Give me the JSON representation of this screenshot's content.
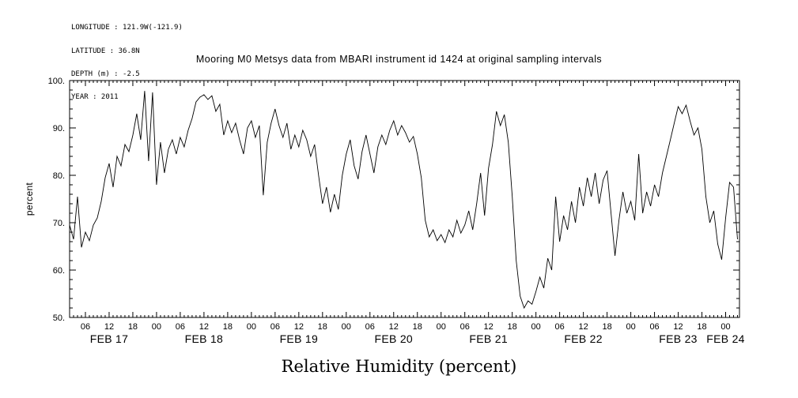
{
  "metadata_block": {
    "lines": [
      "LONGITUDE : 121.9W(-121.9)",
      "LATITUDE : 36.8N",
      "DEPTH (m) : -2.5",
      "YEAR : 2011"
    ]
  },
  "title": "Mooring M0 Metsys data from MBARI instrument id 1424 at original sampling intervals",
  "chart_data": {
    "type": "line",
    "title": "Mooring M0 Metsys data from MBARI instrument id 1424 at original sampling intervals",
    "ylabel": "percent",
    "xlabel": "Relative Humidity (percent)",
    "ylim": [
      50,
      100
    ],
    "y_ticks": [
      50,
      60,
      70,
      80,
      90,
      100
    ],
    "y_tick_labels": [
      "50.",
      "60.",
      "70.",
      "80.",
      "90.",
      "100."
    ],
    "x_unit": "hours since 2011-02-17 00:00",
    "x_domain": [
      2,
      171.5
    ],
    "x_major_tick_hours": 6,
    "x_hour_labels": [
      "00",
      "06",
      "12",
      "18"
    ],
    "day_labels": [
      {
        "label": "FEB 17",
        "hour": 12
      },
      {
        "label": "FEB 18",
        "hour": 36
      },
      {
        "label": "FEB 19",
        "hour": 60
      },
      {
        "label": "FEB 20",
        "hour": 84
      },
      {
        "label": "FEB 21",
        "hour": 108
      },
      {
        "label": "FEB 22",
        "hour": 132
      },
      {
        "label": "FEB 23",
        "hour": 156
      },
      {
        "label": "FEB 24",
        "hour": 168
      }
    ],
    "grid": false,
    "line_color": "#000000",
    "series": [
      {
        "name": "relative humidity",
        "t_start": 2,
        "t_step": 1,
        "values": [
          69.5,
          66.5,
          75.5,
          64.8,
          68.0,
          66.2,
          69.5,
          71.0,
          74.5,
          79.5,
          82.5,
          77.5,
          84.0,
          82.0,
          86.5,
          85.0,
          88.5,
          93.0,
          87.5,
          97.8,
          83.0,
          97.5,
          78.0,
          87.0,
          80.5,
          85.5,
          87.5,
          84.5,
          88.0,
          86.0,
          89.5,
          92.0,
          95.5,
          96.5,
          97.0,
          96.0,
          96.8,
          93.5,
          95.0,
          88.5,
          91.5,
          89.0,
          91.0,
          87.5,
          84.5,
          90.0,
          91.5,
          88.0,
          90.5,
          75.8,
          87.0,
          91.0,
          94.0,
          90.5,
          88.0,
          91.0,
          85.5,
          88.5,
          86.0,
          89.5,
          87.5,
          84.0,
          86.5,
          80.0,
          74.0,
          77.5,
          72.2,
          76.0,
          72.8,
          80.0,
          84.5,
          87.5,
          82.0,
          79.2,
          85.0,
          88.5,
          84.5,
          80.5,
          86.0,
          88.5,
          86.5,
          89.5,
          91.5,
          88.5,
          90.5,
          89.0,
          87.0,
          88.2,
          84.5,
          79.5,
          70.5,
          67.0,
          68.5,
          66.2,
          67.5,
          65.8,
          68.5,
          67.0,
          70.5,
          67.8,
          69.5,
          72.5,
          68.5,
          74.0,
          80.5,
          71.5,
          81.5,
          86.5,
          93.5,
          90.5,
          92.8,
          87.0,
          75.5,
          62.0,
          54.5,
          52.0,
          53.5,
          52.8,
          55.5,
          58.5,
          56.2,
          62.5,
          60.0,
          75.5,
          66.0,
          71.5,
          68.5,
          74.5,
          70.0,
          77.5,
          73.5,
          79.5,
          75.5,
          80.5,
          74.0,
          79.0,
          81.0,
          72.0,
          63.0,
          70.5,
          76.5,
          72.0,
          74.5,
          70.5,
          84.5,
          72.0,
          76.5,
          73.5,
          78.0,
          75.5,
          80.5,
          84.0,
          87.5,
          91.0,
          94.5,
          93.0,
          94.8,
          91.5,
          88.5,
          90.0,
          85.5,
          75.5,
          70.0,
          72.5,
          65.5,
          62.2,
          71.0,
          78.5,
          77.5,
          66.5
        ]
      }
    ]
  }
}
